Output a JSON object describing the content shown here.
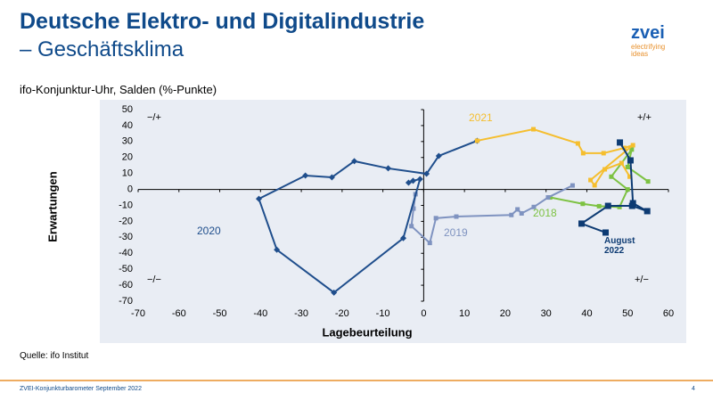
{
  "header": {
    "title_line1": "Deutsche Elektro- und Digitalindustrie",
    "title_line2": "– Geschäftsklima",
    "logo": "zvei",
    "logo_tagline1": "electrifying",
    "logo_tagline2": "ideas"
  },
  "chart_data": {
    "type": "line",
    "title": "ifo-Konjunktur-Uhr, Salden (%-Punkte)",
    "x_label": "Lagebeurteilung",
    "y_label": "Erwartungen",
    "xlim": [
      -70,
      60
    ],
    "ylim": [
      -70,
      50
    ],
    "xticks": [
      -70,
      -60,
      -50,
      -40,
      -30,
      -20,
      -10,
      0,
      10,
      20,
      30,
      40,
      50,
      60
    ],
    "yticks": [
      -70,
      -60,
      -50,
      -40,
      -30,
      -20,
      -10,
      0,
      10,
      20,
      30,
      40,
      50
    ],
    "quadrant_labels": [
      "−/+",
      "+/+",
      "−/−",
      "+/−"
    ],
    "series": [
      {
        "name": "2018",
        "color": "#7dc242",
        "marker": "square",
        "x": [
          55,
          50,
          51,
          46,
          50,
          48,
          43,
          39,
          31
        ],
        "values": [
          5,
          14,
          25,
          8,
          0,
          -11,
          -10.5,
          -9,
          -5
        ]
      },
      {
        "name": "2019",
        "color": "#7f93c0",
        "marker": "square",
        "x": [
          36.5,
          30.5,
          27,
          24,
          23,
          21.5,
          8,
          3,
          1.5,
          -3,
          -2.5,
          -2
        ],
        "values": [
          2.5,
          -5,
          -11,
          -15,
          -12.5,
          -16,
          -17,
          -18,
          -33.5,
          -23,
          -12,
          -3
        ]
      },
      {
        "name": "2020",
        "color": "#1f4e8c",
        "marker": "diamond",
        "x": [
          -3.7,
          -2.6,
          -0.9,
          -5,
          -22,
          -36,
          -40.4,
          -29,
          -22.5,
          -17,
          -8.7,
          0.7,
          3.7,
          13.1
        ],
        "values": [
          4.2,
          5.4,
          6.5,
          -30.5,
          -64.6,
          -37.8,
          -5.9,
          8.7,
          7.6,
          17.7,
          13.2,
          9.8,
          21,
          30.5
        ]
      },
      {
        "name": "2021",
        "color": "#f5be2e",
        "marker": "square",
        "x": [
          13.1,
          26.9,
          37.8,
          39.1,
          44.1,
          49.2,
          51.3,
          40.9,
          41.9,
          44.4,
          48.5,
          50.5
        ],
        "values": [
          30.5,
          37.7,
          28.8,
          22.7,
          22.7,
          26,
          27.7,
          5.9,
          2.6,
          12.6,
          16.5,
          8
        ]
      },
      {
        "name": "August 2022",
        "color": "#0d3b73",
        "marker": "square",
        "x": [
          48.1,
          50.7,
          51.3,
          54.8,
          51.1,
          45.2,
          38.7,
          44.6
        ],
        "values": [
          29.4,
          18.2,
          -8.6,
          -13.6,
          -10.3,
          -10.3,
          -21.4,
          -27
        ]
      }
    ]
  },
  "source": "Quelle: ifo Institut",
  "footer": {
    "text": "ZVEI-Konjunkturbarometer September 2022",
    "page": "4"
  }
}
